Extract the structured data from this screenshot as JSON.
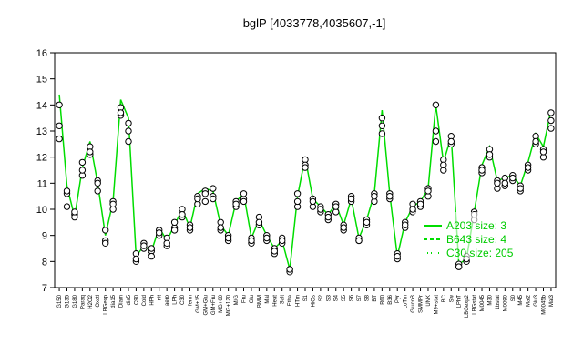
{
  "chart_data": {
    "type": "line",
    "title": "bglP [4033778,4035607,-1]",
    "xlabel": "",
    "ylabel": "",
    "ylim": [
      7,
      16
    ],
    "yticks": [
      7,
      8,
      9,
      10,
      11,
      12,
      13,
      14,
      15,
      16
    ],
    "grid": false,
    "legend_position": "center-right",
    "colors": {
      "line": "#00dd00",
      "point_fill": "#ffffff",
      "point_stroke": "#000000",
      "axis": "#000000"
    },
    "x_tick_labels": [
      "G150",
      "G135",
      "G180",
      "Paraq",
      "H2O2",
      "Oxctl",
      "LBGexp",
      "dia15",
      "Diam",
      "dia5",
      "C90",
      "Cold",
      "HPh",
      "nit",
      "aero",
      "LPh",
      "C30",
      "ferm",
      "GM+15",
      "GM+Glu",
      "GM+Fru",
      "MG+60",
      "MG+120",
      "M/G",
      "Fru",
      "Glu",
      "BMM",
      "Mal",
      "Heat",
      "Salt",
      "Etha",
      "HTm",
      "S1",
      "HiOs",
      "S2",
      "S3",
      "S4",
      "S5",
      "S6",
      "S7",
      "S8",
      "BT",
      "B60",
      "B36",
      "Pyr",
      "LoTm",
      "GlucoB",
      "SMMPr",
      "UNK",
      "M9+stat",
      "BC",
      "Sw",
      "LPhT",
      "LBGexp2",
      "LBGstat",
      "M0045",
      "M30",
      "Lbstat",
      "M0090",
      "S0",
      "M45",
      "Mal2",
      "Glu3",
      "M0045b",
      "Mal3"
    ],
    "series": [
      {
        "name": "A203",
        "kind": "points",
        "x": [
          1,
          2,
          3,
          4,
          5,
          6,
          7,
          8,
          9,
          10,
          11,
          12,
          13,
          14,
          15,
          16,
          17,
          18,
          19,
          20,
          21,
          22,
          23,
          24,
          25,
          26,
          27,
          28,
          29,
          30,
          31,
          32,
          33,
          34,
          35,
          36,
          37,
          38,
          39,
          40,
          41,
          42,
          43,
          44,
          45,
          46,
          47,
          48,
          49,
          50,
          51,
          52,
          53,
          54,
          55,
          56,
          57,
          58,
          59,
          60,
          61,
          62,
          63,
          64,
          65
        ],
        "y": [
          14.0,
          10.6,
          9.8,
          11.8,
          12.4,
          11.1,
          8.8,
          10.3,
          13.9,
          13.3,
          8.0,
          8.5,
          8.4,
          9.2,
          8.6,
          9.3,
          9.7,
          9.4,
          10.2,
          10.7,
          10.5,
          9.5,
          9.0,
          10.3,
          10.4,
          8.7,
          9.4,
          9.0,
          8.5,
          8.7,
          7.7,
          10.1,
          11.9,
          10.4,
          9.9,
          9.6,
          10.2,
          9.4,
          10.3,
          8.8,
          9.6,
          10.6,
          13.5,
          10.4,
          8.1,
          9.3,
          9.9,
          10.1,
          10.8,
          14.0,
          11.9,
          12.8,
          7.8,
          8.0,
          9.9,
          11.6,
          12.3,
          11.1,
          10.9,
          11.3,
          10.7,
          11.7,
          12.8,
          12.3,
          13.7
        ]
      },
      {
        "name": "B643",
        "kind": "points",
        "x": [
          1,
          2,
          3,
          4,
          5,
          6,
          7,
          8,
          9,
          10,
          11,
          12,
          13,
          14,
          15,
          16,
          17,
          18,
          19,
          20,
          21,
          22,
          23,
          24,
          25,
          26,
          27,
          28,
          29,
          30,
          31,
          32,
          33,
          34,
          35,
          36,
          37,
          38,
          39,
          40,
          41,
          42,
          43,
          44,
          45,
          46,
          47,
          48,
          49,
          50,
          51,
          52,
          53,
          54,
          55,
          56,
          57,
          58,
          59,
          60,
          61,
          62,
          63,
          64,
          65
        ],
        "y": [
          12.7,
          10.1,
          9.7,
          11.3,
          12.1,
          10.7,
          9.2,
          10.0,
          13.6,
          12.6,
          8.3,
          8.7,
          8.2,
          9.0,
          8.9,
          9.5,
          10.0,
          9.2,
          10.5,
          10.3,
          10.8,
          9.2,
          8.8,
          10.1,
          10.6,
          8.9,
          9.7,
          8.8,
          8.3,
          8.9,
          7.6,
          10.6,
          11.7,
          10.1,
          10.1,
          9.8,
          9.9,
          9.2,
          10.5,
          8.9,
          9.4,
          10.3,
          12.9,
          10.6,
          8.3,
          9.5,
          10.2,
          10.3,
          10.5,
          12.6,
          11.5,
          12.5,
          7.9,
          8.2,
          9.6,
          11.4,
          12.0,
          10.8,
          11.2,
          11.1,
          10.9,
          11.5,
          12.5,
          12.0,
          13.1
        ]
      },
      {
        "name": "C30",
        "kind": "points",
        "x": [
          1,
          2,
          3,
          4,
          5,
          6,
          7,
          8,
          9,
          10,
          11,
          12,
          13,
          14,
          15,
          16,
          17,
          18,
          19,
          20,
          21,
          22,
          23,
          24,
          25,
          26,
          27,
          28,
          29,
          30,
          31,
          32,
          33,
          34,
          35,
          36,
          37,
          38,
          39,
          40,
          41,
          42,
          43,
          44,
          45,
          46,
          47,
          48,
          49,
          50,
          51,
          52,
          53,
          54,
          55,
          56,
          57,
          58,
          59,
          60,
          61,
          62,
          63,
          64,
          65
        ],
        "y": [
          13.2,
          10.7,
          9.9,
          11.5,
          12.2,
          11.0,
          8.7,
          10.2,
          13.7,
          13.0,
          8.1,
          8.6,
          8.5,
          9.1,
          8.7,
          9.2,
          9.8,
          9.3,
          10.4,
          10.6,
          10.4,
          9.3,
          8.9,
          10.2,
          10.3,
          8.8,
          9.5,
          8.9,
          8.4,
          8.8,
          7.7,
          10.3,
          11.6,
          10.3,
          10.0,
          9.7,
          10.1,
          9.3,
          10.4,
          8.8,
          9.5,
          10.5,
          13.2,
          10.5,
          8.2,
          9.4,
          10.0,
          10.2,
          10.7,
          13.0,
          11.7,
          12.6,
          7.8,
          8.1,
          9.8,
          11.5,
          12.1,
          11.0,
          11.0,
          11.2,
          10.8,
          11.6,
          12.6,
          12.2,
          13.4
        ]
      },
      {
        "name": "trend",
        "kind": "line",
        "x": [
          1,
          2,
          3,
          4,
          5,
          6,
          7,
          8,
          9,
          10,
          11,
          12,
          13,
          14,
          15,
          16,
          17,
          18,
          19,
          20,
          21,
          22,
          23,
          24,
          25,
          26,
          27,
          28,
          29,
          30,
          31,
          32,
          33,
          34,
          35,
          36,
          37,
          38,
          39,
          40,
          41,
          42,
          43,
          44,
          45,
          46,
          47,
          48,
          49,
          50,
          51,
          52,
          53,
          54,
          55,
          56,
          57,
          58,
          59,
          60,
          61,
          62,
          63,
          64,
          65
        ],
        "y": [
          14.4,
          10.9,
          9.7,
          11.6,
          12.6,
          11.0,
          9.0,
          10.3,
          14.2,
          13.5,
          8.2,
          8.6,
          8.4,
          9.3,
          8.8,
          9.4,
          10.0,
          9.3,
          10.6,
          10.8,
          10.7,
          9.4,
          9.0,
          10.3,
          10.6,
          8.9,
          9.6,
          9.0,
          8.5,
          8.8,
          7.7,
          10.5,
          12.0,
          10.4,
          10.1,
          9.8,
          10.2,
          9.4,
          10.4,
          8.9,
          9.6,
          10.6,
          13.8,
          10.6,
          8.2,
          9.5,
          10.1,
          10.3,
          10.8,
          14.0,
          11.8,
          12.8,
          7.9,
          8.1,
          9.9,
          11.7,
          12.4,
          11.1,
          11.2,
          11.3,
          10.9,
          11.8,
          12.9,
          12.4,
          13.8
        ]
      }
    ],
    "legend": {
      "entries": [
        {
          "label": "A203",
          "size_label": "size: 3"
        },
        {
          "label": "B643",
          "size_label": "size: 4"
        },
        {
          "label": "C30",
          "size_label": "size: 205"
        }
      ]
    }
  }
}
